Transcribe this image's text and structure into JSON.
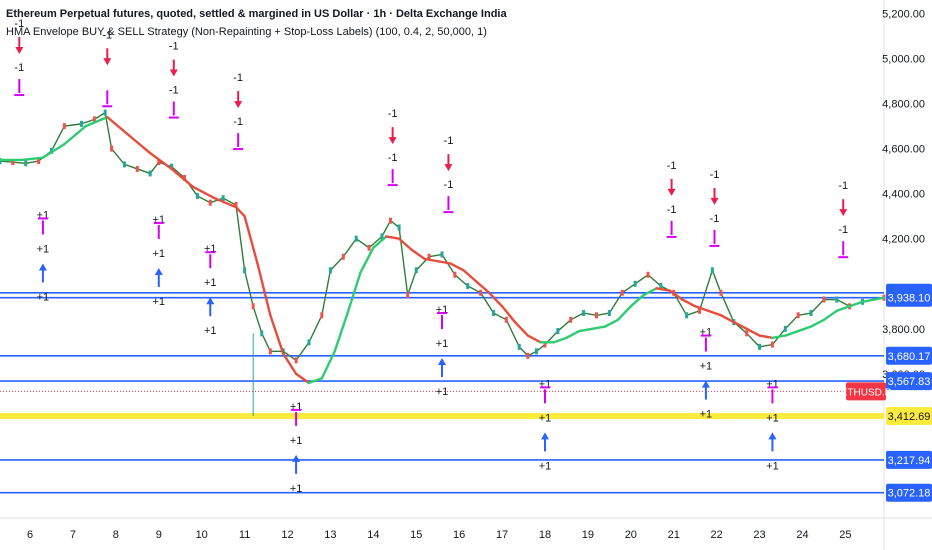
{
  "header": {
    "title": "Ethereum Perpetual futures, quoted, settled & margined in US Dollar · 1h · Delta Exchange India",
    "indicator": "HMA Envelope BUY & SELL Strategy (Non-Repainting + Stop-Loss Labels) (100, 0.4, 2, 50,000, 1)"
  },
  "chart_data": {
    "type": "line",
    "title": "Ethereum Perpetual futures, quoted, settled & margined in US Dollar · 1h · Delta Exchange India",
    "xlabel": "",
    "ylabel": "",
    "ylim": [
      2960,
      5260
    ],
    "xlim": [
      5.3,
      25.9
    ],
    "y_ticks": [
      "5,200.00",
      "5,000.00",
      "4,800.00",
      "4,600.00",
      "4,400.00",
      "4,200.00",
      "3,800.00",
      "3,600.00"
    ],
    "y_tick_values": [
      5200,
      5000,
      4800,
      4600,
      4400,
      4200,
      3800,
      3600
    ],
    "x_ticks": [
      "6",
      "7",
      "8",
      "9",
      "10",
      "11",
      "12",
      "13",
      "14",
      "15",
      "16",
      "17",
      "18",
      "19",
      "20",
      "21",
      "22",
      "23",
      "24",
      "25"
    ],
    "x_tick_values": [
      6,
      7,
      8,
      9,
      10,
      11,
      12,
      13,
      14,
      15,
      16,
      17,
      18,
      19,
      20,
      21,
      22,
      23,
      24,
      25
    ],
    "colors": {
      "price_line": "#2f7d3a",
      "hma_up": "#2ecc71",
      "hma_down": "#e74c3c",
      "sell_arrow": "#e91e4d",
      "buy_arrow": "#2962ff",
      "stop_marker": "#d500f9",
      "level_line": "#2962ff",
      "highlight_line": "#ffeb3b",
      "symbol_tag": "#f23645"
    },
    "series": [
      {
        "points": [
          [
            5.3,
            4545
          ],
          [
            5.6,
            4540
          ],
          [
            5.9,
            4535
          ],
          [
            6.2,
            4545
          ],
          [
            6.5,
            4590
          ],
          [
            6.8,
            4700
          ],
          [
            7.2,
            4710
          ],
          [
            7.5,
            4730
          ],
          [
            7.75,
            4760
          ],
          [
            7.9,
            4600
          ],
          [
            8.2,
            4530
          ],
          [
            8.5,
            4510
          ],
          [
            8.8,
            4490
          ],
          [
            9.0,
            4540
          ],
          [
            9.3,
            4520
          ],
          [
            9.6,
            4470
          ],
          [
            9.9,
            4390
          ],
          [
            10.2,
            4360
          ],
          [
            10.5,
            4380
          ],
          [
            10.8,
            4350
          ],
          [
            11.0,
            4060
          ],
          [
            11.2,
            3900
          ],
          [
            11.4,
            3780
          ],
          [
            11.6,
            3700
          ],
          [
            11.9,
            3700
          ],
          [
            12.2,
            3660
          ],
          [
            12.5,
            3740
          ],
          [
            12.8,
            3860
          ],
          [
            13.0,
            4060
          ],
          [
            13.3,
            4120
          ],
          [
            13.6,
            4200
          ],
          [
            13.9,
            4160
          ],
          [
            14.2,
            4210
          ],
          [
            14.4,
            4280
          ],
          [
            14.6,
            4250
          ],
          [
            14.8,
            3950
          ],
          [
            15.0,
            4060
          ],
          [
            15.3,
            4120
          ],
          [
            15.6,
            4130
          ],
          [
            15.9,
            4040
          ],
          [
            16.2,
            3990
          ],
          [
            16.5,
            3960
          ],
          [
            16.8,
            3870
          ],
          [
            17.1,
            3840
          ],
          [
            17.4,
            3720
          ],
          [
            17.6,
            3680
          ],
          [
            17.8,
            3700
          ],
          [
            18.0,
            3730
          ],
          [
            18.3,
            3790
          ],
          [
            18.6,
            3840
          ],
          [
            18.9,
            3870
          ],
          [
            19.2,
            3860
          ],
          [
            19.5,
            3870
          ],
          [
            19.8,
            3960
          ],
          [
            20.1,
            4000
          ],
          [
            20.4,
            4040
          ],
          [
            20.7,
            3990
          ],
          [
            21.0,
            3960
          ],
          [
            21.3,
            3860
          ],
          [
            21.6,
            3880
          ],
          [
            21.9,
            4060
          ],
          [
            22.1,
            3960
          ],
          [
            22.4,
            3830
          ],
          [
            22.7,
            3780
          ],
          [
            23.0,
            3720
          ],
          [
            23.3,
            3730
          ],
          [
            23.6,
            3800
          ],
          [
            23.9,
            3860
          ],
          [
            24.2,
            3870
          ],
          [
            24.5,
            3930
          ],
          [
            24.8,
            3930
          ],
          [
            25.1,
            3900
          ],
          [
            25.4,
            3920
          ],
          [
            25.9,
            3938
          ]
        ]
      },
      {
        "points": [
          [
            5.3,
            4550
          ],
          [
            5.8,
            4550
          ],
          [
            6.3,
            4560
          ],
          [
            6.8,
            4620
          ],
          [
            7.3,
            4700
          ],
          [
            7.8,
            4740
          ],
          [
            8.3,
            4660
          ],
          [
            8.8,
            4580
          ],
          [
            9.3,
            4510
          ],
          [
            9.8,
            4430
          ],
          [
            10.3,
            4380
          ],
          [
            10.8,
            4340
          ],
          [
            11.0,
            4300
          ],
          [
            11.3,
            4090
          ],
          [
            11.6,
            3860
          ],
          [
            11.9,
            3690
          ],
          [
            12.2,
            3600
          ],
          [
            12.5,
            3560
          ],
          [
            12.8,
            3580
          ],
          [
            13.1,
            3700
          ],
          [
            13.4,
            3870
          ],
          [
            13.7,
            4050
          ],
          [
            14.0,
            4160
          ],
          [
            14.3,
            4210
          ],
          [
            14.6,
            4200
          ],
          [
            14.9,
            4150
          ],
          [
            15.2,
            4110
          ],
          [
            15.5,
            4100
          ],
          [
            15.8,
            4090
          ],
          [
            16.1,
            4060
          ],
          [
            16.4,
            4010
          ],
          [
            16.7,
            3960
          ],
          [
            17.0,
            3900
          ],
          [
            17.3,
            3830
          ],
          [
            17.6,
            3770
          ],
          [
            17.9,
            3740
          ],
          [
            18.2,
            3740
          ],
          [
            18.5,
            3760
          ],
          [
            18.8,
            3790
          ],
          [
            19.1,
            3800
          ],
          [
            19.4,
            3810
          ],
          [
            19.7,
            3840
          ],
          [
            20.0,
            3900
          ],
          [
            20.3,
            3950
          ],
          [
            20.6,
            3980
          ],
          [
            20.9,
            3970
          ],
          [
            21.2,
            3930
          ],
          [
            21.5,
            3900
          ],
          [
            21.8,
            3880
          ],
          [
            22.1,
            3860
          ],
          [
            22.4,
            3830
          ],
          [
            22.7,
            3800
          ],
          [
            23.0,
            3770
          ],
          [
            23.3,
            3760
          ],
          [
            23.6,
            3770
          ],
          [
            23.9,
            3790
          ],
          [
            24.2,
            3810
          ],
          [
            24.5,
            3840
          ],
          [
            24.8,
            3880
          ],
          [
            25.1,
            3900
          ],
          [
            25.4,
            3920
          ],
          [
            25.9,
            3938
          ]
        ]
      }
    ],
    "levels": [
      {
        "value": 3960.01,
        "label": "3,960.01",
        "kind": "blue"
      },
      {
        "value": 3938.1,
        "label": "3,938.10",
        "kind": "blue"
      },
      {
        "value": 3680.17,
        "label": "3,680.17",
        "kind": "blue"
      },
      {
        "value": 3567.83,
        "label": "3,567.83",
        "kind": "blue"
      },
      {
        "value": 3412.69,
        "label": "3,412.69",
        "kind": "yellow"
      },
      {
        "value": 3217.94,
        "label": "3,217.94",
        "kind": "blue"
      },
      {
        "value": 3072.18,
        "label": "3,072.18",
        "kind": "blue"
      }
    ],
    "symbol_tag": {
      "label": "ETHUSD.P",
      "value": 3522
    },
    "signals": [
      {
        "type": "sell",
        "x": 5.75,
        "labels": [
          "-1",
          "-1"
        ],
        "y_top": 5140
      },
      {
        "type": "sell",
        "x": 7.8,
        "labels": [
          "-1"
        ],
        "y_top": 5090
      },
      {
        "type": "sell",
        "x": 9.35,
        "labels": [
          "-1",
          "-1"
        ],
        "y_top": 5040
      },
      {
        "type": "sell",
        "x": 10.85,
        "labels": [
          "-1",
          "-1"
        ],
        "y_top": 4900
      },
      {
        "type": "sell",
        "x": 14.45,
        "labels": [
          "-1",
          "-1"
        ],
        "y_top": 4740
      },
      {
        "type": "sell",
        "x": 15.75,
        "labels": [
          "-1",
          "-1"
        ],
        "y_top": 4620
      },
      {
        "type": "sell",
        "x": 20.95,
        "labels": [
          "-1",
          "-1"
        ],
        "y_top": 4510
      },
      {
        "type": "sell",
        "x": 21.95,
        "labels": [
          "-1",
          "-1"
        ],
        "y_top": 4470
      },
      {
        "type": "sell",
        "x": 24.95,
        "labels": [
          "-1",
          "-1"
        ],
        "y_top": 4420
      },
      {
        "type": "buy",
        "x": 6.3,
        "labels": [
          "+1",
          "+1"
        ],
        "y_top": 4290
      },
      {
        "type": "buy",
        "x": 9.0,
        "labels": [
          "+1",
          "+1"
        ],
        "y_top": 4270
      },
      {
        "type": "buy",
        "x": 10.2,
        "labels": [
          "+1",
          "+1"
        ],
        "y_top": 4140
      },
      {
        "type": "buy",
        "x": 12.2,
        "labels": [
          "+1",
          "+1"
        ],
        "y_top": 3440
      },
      {
        "type": "buy",
        "x": 15.6,
        "labels": [
          "+1",
          "+1"
        ],
        "y_top": 3870
      },
      {
        "type": "buy",
        "x": 18.0,
        "labels": [
          "+1",
          "+1"
        ],
        "y_top": 3540
      },
      {
        "type": "buy",
        "x": 21.75,
        "labels": [
          "+1",
          "+1"
        ],
        "y_top": 3770
      },
      {
        "type": "buy",
        "x": 23.3,
        "labels": [
          "+1",
          "+1"
        ],
        "y_top": 3540
      }
    ],
    "grid": false,
    "legend": "none"
  }
}
